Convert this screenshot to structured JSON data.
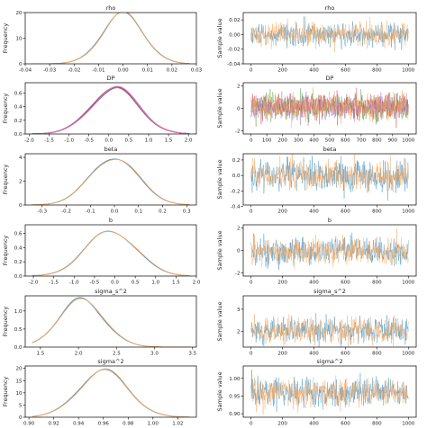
{
  "colors": {
    "series_a": "#3b8fc4",
    "series_b": "#f5a55c",
    "extra": [
      "#3b8fc4",
      "#f5a55c",
      "#4e9a3a",
      "#d14b4b",
      "#9b72c2",
      "#8c5a4a",
      "#e377c2"
    ]
  },
  "chart_data": [
    {
      "type": "line",
      "title": "rho",
      "xlabel": "",
      "ylabel": "Frequency",
      "xlim": [
        -0.04,
        0.03
      ],
      "ylim": [
        0,
        20
      ],
      "xticks": [
        "-0.04",
        "-0.03",
        "-0.02",
        "-0.01",
        "0.00",
        "0.01",
        "0.02",
        "0.03"
      ],
      "yticks": [
        "0",
        "10",
        "20"
      ],
      "density": {
        "mean": 0.0,
        "sd": 0.0085,
        "peak": 19.5
      }
    },
    {
      "type": "line",
      "title": "rho",
      "xlabel": "",
      "ylabel": "Sample value",
      "xlim": [
        -50,
        1050
      ],
      "ylim": [
        -0.04,
        0.03
      ],
      "xticks": [
        "0",
        "200",
        "400",
        "600",
        "800",
        "1000"
      ],
      "yticks": [
        "-0.04",
        "-0.02",
        "0.00",
        "0.02"
      ],
      "trace": {
        "n": 1000,
        "mean": 0.0,
        "sd": 0.008
      }
    },
    {
      "type": "line",
      "title": "DP",
      "xlabel": "",
      "ylabel": "Frequency",
      "xlim": [
        -2.1,
        2.2
      ],
      "ylim": [
        0,
        0.75
      ],
      "xticks": [
        "-2.0",
        "-1.5",
        "-1.0",
        "-0.5",
        "0.0",
        "0.5",
        "1.0",
        "1.5",
        "2.0"
      ],
      "yticks": [
        "0.0",
        "0.2",
        "0.4",
        "0.6"
      ],
      "density": {
        "mean": 0.15,
        "sd": 0.6,
        "peak": 0.67
      }
    },
    {
      "type": "line",
      "title": "DP",
      "xlabel": "",
      "ylabel": "Sample value",
      "xlim": [
        -50,
        1050
      ],
      "ylim": [
        -2.3,
        2.3
      ],
      "xticks": [
        "0",
        "100",
        "200",
        "300",
        "400",
        "500",
        "600",
        "700",
        "800",
        "900",
        "1000"
      ],
      "yticks": [
        "-2",
        "0",
        "2"
      ],
      "trace": {
        "n": 1000,
        "mean": 0.15,
        "sd": 0.6
      }
    },
    {
      "type": "line",
      "title": "beta",
      "xlabel": "",
      "ylabel": "Frequency",
      "xlim": [
        -0.37,
        0.34
      ],
      "ylim": [
        0,
        4.3
      ],
      "xticks": [
        "-0.3",
        "-0.2",
        "-0.1",
        "0.0",
        "0.1",
        "0.2",
        "0.3"
      ],
      "yticks": [
        "0",
        "2",
        "4"
      ],
      "density": {
        "mean": 0.0,
        "sd": 0.1,
        "peak": 4.0
      }
    },
    {
      "type": "line",
      "title": "beta",
      "xlabel": "",
      "ylabel": "Sample value",
      "xlim": [
        -50,
        1050
      ],
      "ylim": [
        -0.38,
        0.28
      ],
      "xticks": [
        "0",
        "200",
        "400",
        "600",
        "800",
        "1000"
      ],
      "yticks": [
        "-0.4",
        "-0.2",
        "0.0",
        "0.2"
      ],
      "trace": {
        "n": 1000,
        "mean": 0.0,
        "sd": 0.1
      }
    },
    {
      "type": "line",
      "title": "b",
      "xlabel": "",
      "ylabel": "Frequency",
      "xlim": [
        -2.2,
        2.0
      ],
      "ylim": [
        0,
        0.72
      ],
      "xticks": [
        "-2.0",
        "-1.5",
        "-1.0",
        "-0.5",
        "0.0",
        "0.5",
        "1.0",
        "1.5",
        "2.0"
      ],
      "yticks": [
        "0.0",
        "0.2",
        "0.4",
        "0.6"
      ],
      "density": {
        "mean": -0.1,
        "sd": 0.62,
        "peak": 0.64
      }
    },
    {
      "type": "line",
      "title": "b",
      "xlabel": "",
      "ylabel": "Sample value",
      "xlim": [
        -50,
        1050
      ],
      "ylim": [
        -2.3,
        2.3
      ],
      "xticks": [
        "0",
        "200",
        "400",
        "600",
        "800",
        "1000"
      ],
      "yticks": [
        "-2",
        "0",
        "2"
      ],
      "trace": {
        "n": 1000,
        "mean": -0.1,
        "sd": 0.62
      }
    },
    {
      "type": "line",
      "title": "sigma_s^2",
      "xlabel": "",
      "ylabel": "Frequency",
      "xlim": [
        1.3,
        3.55
      ],
      "ylim": [
        0,
        1.42
      ],
      "xticks": [
        "1.5",
        "2.0",
        "2.5",
        "3.0",
        "3.5"
      ],
      "yticks": [
        "0.0",
        "0.5",
        "1.0"
      ],
      "density": {
        "mean": 2.05,
        "sd": 0.3,
        "peak": 1.3
      }
    },
    {
      "type": "line",
      "title": "sigma_s^2",
      "xlabel": "",
      "ylabel": "Sample value",
      "xlim": [
        -50,
        1050
      ],
      "ylim": [
        1.3,
        3.6
      ],
      "xticks": [
        "0",
        "200",
        "400",
        "600",
        "800",
        "1000"
      ],
      "yticks": [
        "2",
        "3"
      ],
      "trace": {
        "n": 1000,
        "mean": 2.05,
        "sd": 0.3
      }
    },
    {
      "type": "line",
      "title": "sigma^2",
      "xlabel": "",
      "ylabel": "Frequency",
      "xlim": [
        0.897,
        1.035
      ],
      "ylim": [
        0,
        21
      ],
      "xticks": [
        "0.90",
        "0.92",
        "0.94",
        "0.96",
        "0.98",
        "1.00",
        "1.02"
      ],
      "yticks": [
        "0",
        "5",
        "10",
        "15",
        "20"
      ],
      "density": {
        "mean": 0.96,
        "sd": 0.02,
        "peak": 19.0
      }
    },
    {
      "type": "line",
      "title": "sigma^2",
      "xlabel": "",
      "ylabel": "Sample value",
      "xlim": [
        -50,
        1050
      ],
      "ylim": [
        0.89,
        1.035
      ],
      "xticks": [
        "0",
        "200",
        "400",
        "600",
        "800",
        "1000"
      ],
      "yticks": [
        "0.90",
        "0.95",
        "1.00"
      ],
      "trace": {
        "n": 1000,
        "mean": 0.96,
        "sd": 0.02
      }
    }
  ]
}
